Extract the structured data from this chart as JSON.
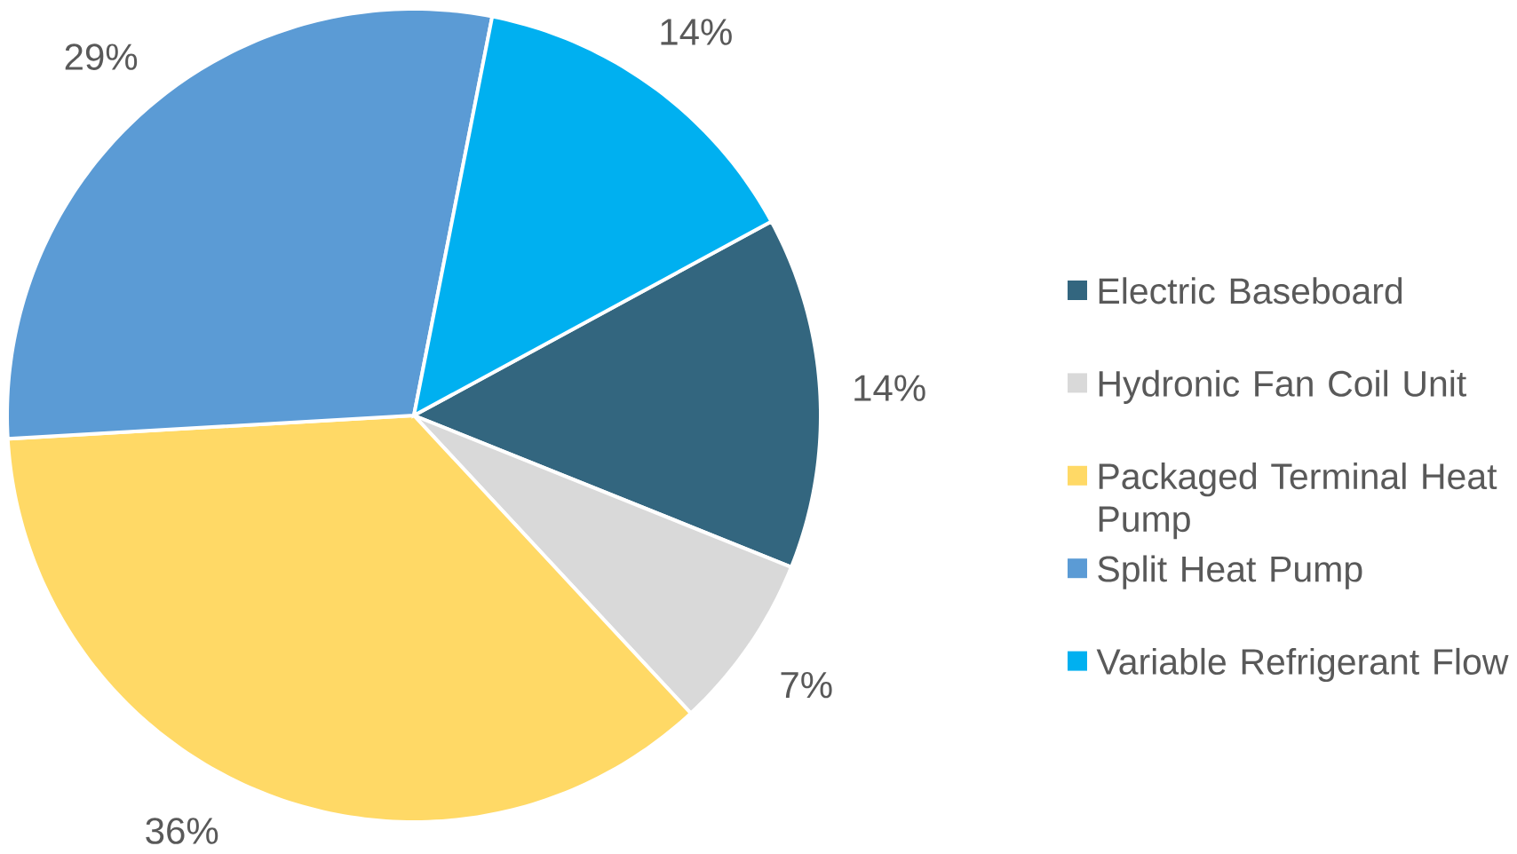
{
  "chart_data": {
    "type": "pie",
    "categories": [
      "Electric Baseboard",
      "Hydronic Fan Coil Unit",
      "Packaged Terminal Heat Pump",
      "Split Heat Pump",
      "Variable Refrigerant Flow"
    ],
    "values": [
      14,
      7,
      36,
      29,
      14
    ],
    "colors": [
      "#33667f",
      "#d9d9d9",
      "#ffd966",
      "#5b9bd5",
      "#00b0f0"
    ],
    "value_labels": [
      "14%",
      "7%",
      "36%",
      "29%",
      "14%"
    ],
    "legend": "right"
  }
}
